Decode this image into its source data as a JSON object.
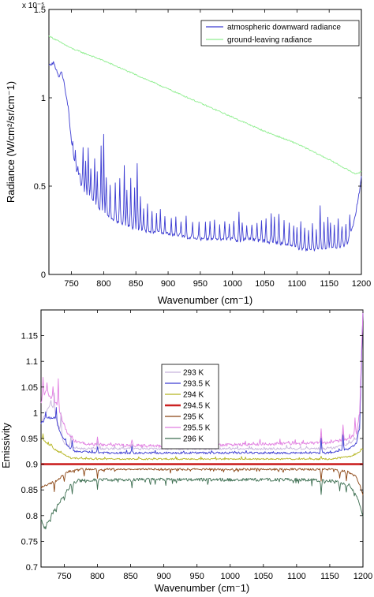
{
  "chart_data": [
    {
      "type": "line",
      "title": "",
      "xlabel": "Wavenumber (cm⁻1)",
      "ylabel": "Radiance (W/cm²/sr/cm⁻1)",
      "y_multiplier": "x 10⁻⁵",
      "xlim": [
        715,
        1200
      ],
      "ylim": [
        0,
        1.5
      ],
      "x_ticks": [
        750,
        800,
        850,
        900,
        950,
        1000,
        1050,
        1100,
        1150,
        1200
      ],
      "y_ticks": [
        0,
        0.5,
        1,
        1.5
      ],
      "x_tick_labels": [
        "750",
        "800",
        "850",
        "900",
        "950",
        "1000",
        "1050",
        "1100",
        "1150",
        "1200"
      ],
      "y_tick_labels": [
        "0",
        "0.5",
        "1",
        "1.5"
      ],
      "legend_position": "top-right",
      "grid": false,
      "series": [
        {
          "name": "atmospheric downward radiance",
          "color": "#3c3cd2",
          "style": "spiky",
          "noise": 0.01,
          "x": [
            715,
            722,
            730,
            735,
            740,
            745,
            750,
            755,
            760,
            770,
            780,
            790,
            800,
            810,
            820,
            830,
            840,
            850,
            860,
            870,
            880,
            890,
            900,
            910,
            920,
            930,
            940,
            950,
            960,
            970,
            980,
            990,
            1000,
            1010,
            1020,
            1030,
            1040,
            1050,
            1060,
            1070,
            1080,
            1090,
            1100,
            1110,
            1120,
            1130,
            1140,
            1150,
            1160,
            1170,
            1180,
            1185,
            1190,
            1195,
            1200
          ],
          "y": [
            1.18,
            1.2,
            1.12,
            1.15,
            1.05,
            0.95,
            0.75,
            0.62,
            0.55,
            0.47,
            0.43,
            0.38,
            0.34,
            0.32,
            0.3,
            0.29,
            0.27,
            0.26,
            0.25,
            0.24,
            0.24,
            0.23,
            0.23,
            0.22,
            0.22,
            0.21,
            0.21,
            0.2,
            0.2,
            0.2,
            0.19,
            0.2,
            0.2,
            0.19,
            0.2,
            0.2,
            0.19,
            0.19,
            0.18,
            0.18,
            0.17,
            0.16,
            0.15,
            0.14,
            0.14,
            0.14,
            0.15,
            0.15,
            0.15,
            0.16,
            0.18,
            0.25,
            0.32,
            0.42,
            0.55
          ],
          "spikes": [
            [
              752,
              0.75
            ],
            [
              756,
              0.7
            ],
            [
              760,
              0.62
            ],
            [
              763,
              0.58
            ],
            [
              768,
              0.72
            ],
            [
              772,
              0.64
            ],
            [
              776,
              0.71
            ],
            [
              780,
              0.6
            ],
            [
              786,
              0.66
            ],
            [
              790,
              0.58
            ],
            [
              796,
              0.72
            ],
            [
              800,
              0.8
            ],
            [
              804,
              0.55
            ],
            [
              810,
              0.5
            ],
            [
              818,
              0.52
            ],
            [
              825,
              0.55
            ],
            [
              832,
              0.58
            ],
            [
              836,
              0.48
            ],
            [
              842,
              0.55
            ],
            [
              848,
              0.5
            ],
            [
              852,
              0.63
            ],
            [
              857,
              0.42
            ],
            [
              862,
              0.38
            ],
            [
              868,
              0.4
            ],
            [
              875,
              0.36
            ],
            [
              882,
              0.34
            ],
            [
              888,
              0.37
            ],
            [
              895,
              0.33
            ],
            [
              905,
              0.31
            ],
            [
              912,
              0.32
            ],
            [
              920,
              0.29
            ],
            [
              928,
              0.33
            ],
            [
              938,
              0.3
            ],
            [
              948,
              0.29
            ],
            [
              958,
              0.3
            ],
            [
              965,
              0.31
            ],
            [
              972,
              0.3
            ],
            [
              980,
              0.29
            ],
            [
              988,
              0.3
            ],
            [
              995,
              0.28
            ],
            [
              1002,
              0.31
            ],
            [
              1010,
              0.36
            ],
            [
              1015,
              0.29
            ],
            [
              1022,
              0.27
            ],
            [
              1030,
              0.29
            ],
            [
              1038,
              0.28
            ],
            [
              1045,
              0.3
            ],
            [
              1052,
              0.32
            ],
            [
              1060,
              0.34
            ],
            [
              1065,
              0.3
            ],
            [
              1072,
              0.35
            ],
            [
              1080,
              0.3
            ],
            [
              1088,
              0.3
            ],
            [
              1095,
              0.28
            ],
            [
              1100,
              0.26
            ],
            [
              1106,
              0.29
            ],
            [
              1112,
              0.27
            ],
            [
              1118,
              0.25
            ],
            [
              1124,
              0.28
            ],
            [
              1130,
              0.26
            ],
            [
              1136,
              0.38
            ],
            [
              1142,
              0.29
            ],
            [
              1148,
              0.32
            ],
            [
              1152,
              0.3
            ],
            [
              1158,
              0.27
            ],
            [
              1164,
              0.31
            ],
            [
              1170,
              0.26
            ],
            [
              1176,
              0.28
            ],
            [
              1182,
              0.33
            ]
          ]
        },
        {
          "name": "ground-leaving radiance",
          "color": "#90ee90",
          "style": "smooth",
          "noise": 0.004,
          "x": [
            715,
            750,
            800,
            850,
            900,
            950,
            1000,
            1050,
            1100,
            1150,
            1190,
            1200
          ],
          "y": [
            1.35,
            1.28,
            1.21,
            1.13,
            1.05,
            0.97,
            0.89,
            0.81,
            0.74,
            0.65,
            0.57,
            0.58
          ],
          "spikes": []
        }
      ]
    },
    {
      "type": "line",
      "title": "",
      "xlabel": "Wavenumber (cm⁻1)",
      "ylabel": "Emissivity",
      "xlim": [
        715,
        1200
      ],
      "ylim": [
        0.7,
        1.2
      ],
      "x_ticks": [
        750,
        800,
        850,
        900,
        950,
        1000,
        1050,
        1100,
        1150,
        1200
      ],
      "y_ticks": [
        0.7,
        0.75,
        0.8,
        0.85,
        0.9,
        0.95,
        1,
        1.05,
        1.1,
        1.15
      ],
      "x_tick_labels": [
        "750",
        "800",
        "850",
        "900",
        "950",
        "1000",
        "1050",
        "1100",
        "1150",
        "1200"
      ],
      "y_tick_labels": [
        "0.7",
        "0.75",
        "0.8",
        "0.85",
        "0.9",
        "0.95",
        "1",
        "1.05",
        "1.1",
        "1.15"
      ],
      "legend_position": "upper-center",
      "grid": false,
      "series": [
        {
          "name": "293 K",
          "color": "#c8b4dc",
          "style": "spiky",
          "noise": 0.002,
          "x": [
            715,
            730,
            740,
            750,
            760,
            775,
            800,
            900,
            1000,
            1100,
            1150,
            1180,
            1190,
            1195,
            1200
          ],
          "y": [
            0.98,
            1.02,
            0.98,
            0.94,
            0.935,
            0.93,
            0.93,
            0.93,
            0.93,
            0.93,
            0.93,
            0.94,
            0.95,
            0.98,
            1.2
          ],
          "spikes": [
            [
              735,
              1.04
            ],
            [
              745,
              1.0
            ],
            [
              760,
              0.955
            ],
            [
              800,
              0.945
            ],
            [
              852,
              0.94
            ],
            [
              1137,
              0.955
            ],
            [
              1170,
              0.965
            ]
          ]
        },
        {
          "name": "293.5 K",
          "color": "#3c3cd2",
          "style": "spiky",
          "noise": 0.002,
          "x": [
            715,
            725,
            735,
            745,
            755,
            765,
            780,
            800,
            900,
            1000,
            1100,
            1150,
            1180,
            1190,
            1195,
            1200
          ],
          "y": [
            0.98,
            0.99,
            0.99,
            0.96,
            0.935,
            0.925,
            0.925,
            0.922,
            0.922,
            0.922,
            0.922,
            0.922,
            0.93,
            0.94,
            0.97,
            1.2
          ],
          "spikes": [
            [
              722,
              1.0
            ],
            [
              738,
              1.01
            ],
            [
              752,
              0.95
            ],
            [
              762,
              0.945
            ],
            [
              800,
              0.935
            ],
            [
              852,
              0.932
            ],
            [
              1137,
              0.95
            ],
            [
              1170,
              0.958
            ]
          ]
        },
        {
          "name": "294 K",
          "color": "#b4b41e",
          "style": "spiky",
          "noise": 0.0015,
          "x": [
            715,
            725,
            740,
            760,
            800,
            900,
            1000,
            1100,
            1150,
            1180,
            1190,
            1200
          ],
          "y": [
            0.95,
            0.94,
            0.925,
            0.912,
            0.91,
            0.91,
            0.91,
            0.91,
            0.91,
            0.915,
            0.92,
            0.93
          ],
          "spikes": [
            [
              718,
              0.955
            ],
            [
              730,
              0.94
            ],
            [
              745,
              0.925
            ],
            [
              1137,
              0.915
            ]
          ]
        },
        {
          "name": "294.5 K",
          "color": "#cc2222",
          "style": "flat",
          "thick": true,
          "noise": 0,
          "x": [
            715,
            1200
          ],
          "y": [
            0.9,
            0.9
          ],
          "spikes": []
        },
        {
          "name": "295 K",
          "color": "#8b4513",
          "style": "dippy",
          "noise": 0.002,
          "x": [
            715,
            725,
            740,
            755,
            770,
            800,
            900,
            1000,
            1100,
            1150,
            1180,
            1190,
            1195,
            1200
          ],
          "y": [
            0.855,
            0.86,
            0.87,
            0.885,
            0.89,
            0.89,
            0.89,
            0.89,
            0.89,
            0.89,
            0.885,
            0.875,
            0.86,
            0.84
          ],
          "spikes": [
            [
              735,
              0.845
            ],
            [
              750,
              0.865
            ],
            [
              780,
              0.875
            ],
            [
              800,
              0.872
            ],
            [
              1137,
              0.868
            ],
            [
              1165,
              0.872
            ],
            [
              1175,
              0.868
            ]
          ]
        },
        {
          "name": "295.5 K",
          "color": "#e17ee1",
          "style": "spiky",
          "noise": 0.003,
          "x": [
            715,
            722,
            730,
            738,
            746,
            755,
            765,
            780,
            800,
            900,
            1000,
            1100,
            1150,
            1180,
            1190,
            1195,
            1200
          ],
          "y": [
            1.02,
            1.04,
            1.03,
            1.02,
            0.99,
            0.96,
            0.945,
            0.94,
            0.938,
            0.935,
            0.938,
            0.94,
            0.942,
            0.95,
            0.96,
            1.0,
            1.2
          ],
          "spikes": [
            [
              718,
              1.07
            ],
            [
              724,
              1.06
            ],
            [
              733,
              1.05
            ],
            [
              741,
              1.065
            ],
            [
              750,
              0.98
            ],
            [
              762,
              0.955
            ],
            [
              800,
              0.952
            ],
            [
              852,
              0.95
            ],
            [
              1137,
              0.968
            ],
            [
              1170,
              0.978
            ],
            [
              1188,
              0.99
            ]
          ]
        },
        {
          "name": "296 K",
          "color": "#3c6e50",
          "style": "dippy",
          "noise": 0.003,
          "x": [
            715,
            722,
            730,
            740,
            750,
            760,
            770,
            800,
            900,
            1000,
            1100,
            1150,
            1180,
            1190,
            1195,
            1200
          ],
          "y": [
            0.79,
            0.78,
            0.8,
            0.82,
            0.84,
            0.86,
            0.868,
            0.87,
            0.87,
            0.87,
            0.87,
            0.868,
            0.86,
            0.84,
            0.82,
            0.8
          ],
          "spikes": [
            [
              720,
              0.775
            ],
            [
              728,
              0.79
            ],
            [
              738,
              0.81
            ],
            [
              750,
              0.83
            ],
            [
              762,
              0.845
            ],
            [
              800,
              0.85
            ],
            [
              852,
              0.852
            ],
            [
              1137,
              0.842
            ],
            [
              1165,
              0.85
            ],
            [
              1175,
              0.843
            ]
          ]
        }
      ]
    }
  ]
}
